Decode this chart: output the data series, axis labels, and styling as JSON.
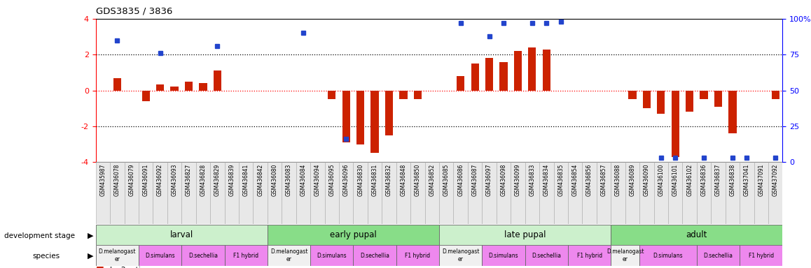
{
  "title": "GDS3835 / 3836",
  "samples": [
    "GSM435987",
    "GSM436078",
    "GSM436079",
    "GSM436091",
    "GSM436092",
    "GSM436093",
    "GSM436827",
    "GSM436828",
    "GSM436829",
    "GSM436839",
    "GSM436841",
    "GSM436842",
    "GSM436080",
    "GSM436083",
    "GSM436084",
    "GSM436094",
    "GSM436095",
    "GSM436096",
    "GSM436830",
    "GSM436831",
    "GSM436832",
    "GSM436848",
    "GSM436850",
    "GSM436852",
    "GSM436085",
    "GSM436086",
    "GSM436087",
    "GSM436097",
    "GSM436098",
    "GSM436099",
    "GSM436833",
    "GSM436834",
    "GSM436835",
    "GSM436854",
    "GSM436856",
    "GSM436857",
    "GSM436088",
    "GSM436089",
    "GSM436090",
    "GSM436100",
    "GSM436101",
    "GSM436102",
    "GSM436836",
    "GSM436837",
    "GSM436838",
    "GSM437041",
    "GSM437091",
    "GSM437092"
  ],
  "log2": [
    0.0,
    0.7,
    0.0,
    -0.6,
    0.35,
    0.2,
    0.5,
    0.4,
    1.1,
    0.0,
    0.0,
    0.0,
    0.0,
    0.0,
    0.0,
    0.0,
    -0.5,
    -2.9,
    -3.0,
    -3.5,
    -2.5,
    -0.5,
    -0.5,
    0.0,
    0.0,
    0.8,
    1.5,
    1.8,
    1.6,
    2.2,
    2.4,
    2.3,
    0.0,
    0.0,
    0.0,
    0.0,
    0.0,
    -0.5,
    -1.0,
    -1.3,
    -3.7,
    -1.2,
    -0.5,
    -0.9,
    -2.4,
    0.0,
    0.0,
    -0.5
  ],
  "percentile": [
    null,
    85,
    null,
    null,
    76,
    null,
    null,
    null,
    81,
    null,
    null,
    null,
    null,
    null,
    90,
    null,
    null,
    16,
    null,
    null,
    null,
    null,
    null,
    null,
    null,
    97,
    null,
    88,
    97,
    null,
    97,
    97,
    98,
    null,
    null,
    null,
    null,
    null,
    null,
    3,
    3,
    null,
    3,
    null,
    3,
    3,
    null,
    3
  ],
  "bar_color": "#cc2200",
  "dot_color": "#2244cc",
  "ylim_left": [
    -4,
    4
  ],
  "dev_stages": [
    {
      "label": "larval",
      "start": 0,
      "end": 12,
      "color": "#ccf0cc"
    },
    {
      "label": "early pupal",
      "start": 12,
      "end": 24,
      "color": "#88dd88"
    },
    {
      "label": "late pupal",
      "start": 24,
      "end": 36,
      "color": "#ccf0cc"
    },
    {
      "label": "adult",
      "start": 36,
      "end": 48,
      "color": "#88dd88"
    }
  ],
  "species_groups": [
    {
      "label": "D.melanogast\ner",
      "start": 0,
      "end": 3,
      "color": "#f0f0f0"
    },
    {
      "label": "D.simulans",
      "start": 3,
      "end": 6,
      "color": "#ee88ee"
    },
    {
      "label": "D.sechellia",
      "start": 6,
      "end": 9,
      "color": "#ee88ee"
    },
    {
      "label": "F1 hybrid",
      "start": 9,
      "end": 12,
      "color": "#ee88ee"
    },
    {
      "label": "D.melanogast\ner",
      "start": 12,
      "end": 15,
      "color": "#f0f0f0"
    },
    {
      "label": "D.simulans",
      "start": 15,
      "end": 18,
      "color": "#ee88ee"
    },
    {
      "label": "D.sechellia",
      "start": 18,
      "end": 21,
      "color": "#ee88ee"
    },
    {
      "label": "F1 hybrid",
      "start": 21,
      "end": 24,
      "color": "#ee88ee"
    },
    {
      "label": "D.melanogast\ner",
      "start": 24,
      "end": 27,
      "color": "#f0f0f0"
    },
    {
      "label": "D.simulans",
      "start": 27,
      "end": 30,
      "color": "#ee88ee"
    },
    {
      "label": "D.sechellia",
      "start": 30,
      "end": 33,
      "color": "#ee88ee"
    },
    {
      "label": "F1 hybrid",
      "start": 33,
      "end": 36,
      "color": "#ee88ee"
    },
    {
      "label": "D.melanogast\ner",
      "start": 36,
      "end": 38,
      "color": "#f0f0f0"
    },
    {
      "label": "D.simulans",
      "start": 38,
      "end": 42,
      "color": "#ee88ee"
    },
    {
      "label": "D.sechellia",
      "start": 42,
      "end": 45,
      "color": "#ee88ee"
    },
    {
      "label": "F1 hybrid",
      "start": 45,
      "end": 48,
      "color": "#ee88ee"
    }
  ],
  "right_ticks": [
    0,
    25,
    50,
    75,
    100
  ],
  "right_tick_labels": [
    "0",
    "25",
    "50",
    "75",
    "100%"
  ]
}
